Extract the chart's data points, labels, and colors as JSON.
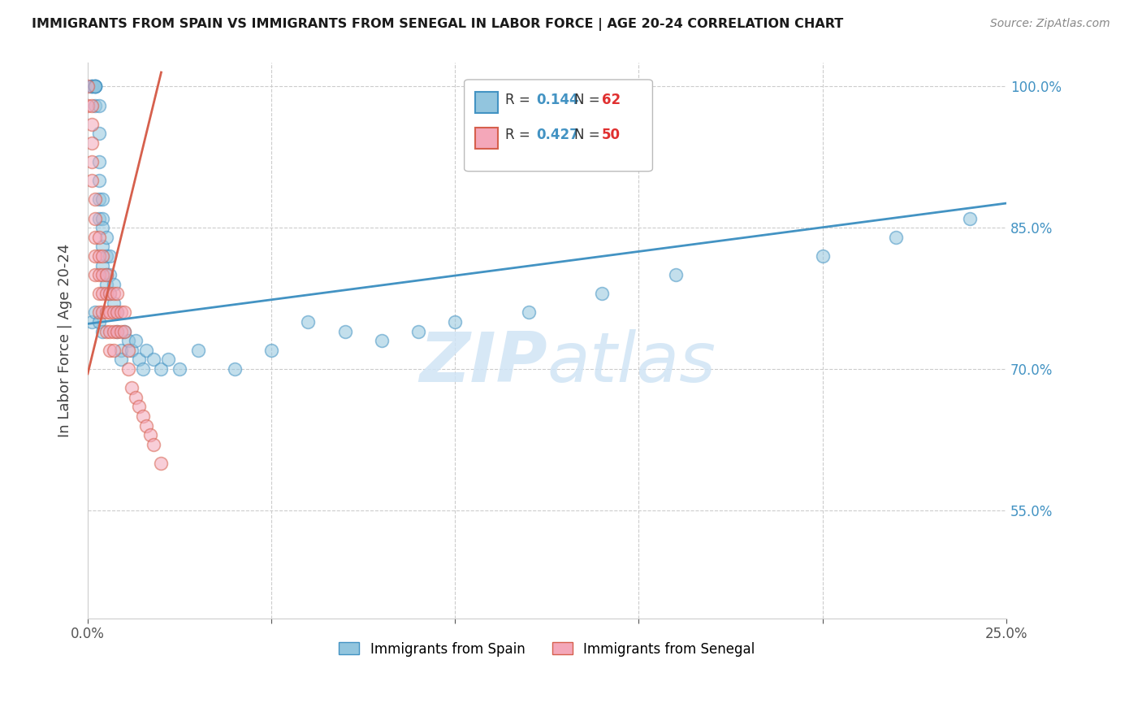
{
  "title": "IMMIGRANTS FROM SPAIN VS IMMIGRANTS FROM SENEGAL IN LABOR FORCE | AGE 20-24 CORRELATION CHART",
  "source": "Source: ZipAtlas.com",
  "ylabel": "In Labor Force | Age 20-24",
  "xlim": [
    0.0,
    0.25
  ],
  "ylim": [
    0.435,
    1.025
  ],
  "xticks": [
    0.0,
    0.05,
    0.1,
    0.15,
    0.2,
    0.25
  ],
  "xticklabels": [
    "0.0%",
    "",
    "",
    "",
    "",
    "25.0%"
  ],
  "yticks": [
    0.55,
    0.7,
    0.85,
    1.0
  ],
  "yticklabels": [
    "55.0%",
    "70.0%",
    "85.0%",
    "100.0%"
  ],
  "legend_r_spain": "0.144",
  "legend_n_spain": "62",
  "legend_r_senegal": "0.427",
  "legend_n_senegal": "50",
  "color_spain": "#92c5de",
  "color_senegal": "#f4a7b9",
  "trendline_spain_color": "#4393c3",
  "trendline_senegal_color": "#d6604d",
  "watermark_color": "#d0e4f5",
  "background_color": "#ffffff",
  "grid_color": "#cccccc",
  "spain_x": [
    0.001,
    0.001,
    0.001,
    0.002,
    0.002,
    0.002,
    0.002,
    0.002,
    0.002,
    0.003,
    0.003,
    0.003,
    0.003,
    0.003,
    0.003,
    0.004,
    0.004,
    0.004,
    0.004,
    0.004,
    0.005,
    0.005,
    0.005,
    0.005,
    0.006,
    0.006,
    0.006,
    0.007,
    0.007,
    0.008,
    0.008,
    0.009,
    0.009,
    0.01,
    0.011,
    0.012,
    0.013,
    0.014,
    0.015,
    0.016,
    0.018,
    0.02,
    0.022,
    0.025,
    0.03,
    0.04,
    0.05,
    0.06,
    0.07,
    0.08,
    0.09,
    0.1,
    0.12,
    0.14,
    0.16,
    0.2,
    0.22,
    0.24,
    0.001,
    0.002,
    0.003,
    0.004
  ],
  "spain_y": [
    1.0,
    1.0,
    1.0,
    1.0,
    1.0,
    1.0,
    1.0,
    1.0,
    0.98,
    0.98,
    0.95,
    0.92,
    0.9,
    0.88,
    0.86,
    0.88,
    0.86,
    0.85,
    0.83,
    0.81,
    0.84,
    0.82,
    0.8,
    0.79,
    0.82,
    0.8,
    0.78,
    0.79,
    0.77,
    0.76,
    0.74,
    0.72,
    0.71,
    0.74,
    0.73,
    0.72,
    0.73,
    0.71,
    0.7,
    0.72,
    0.71,
    0.7,
    0.71,
    0.7,
    0.72,
    0.7,
    0.72,
    0.75,
    0.74,
    0.73,
    0.74,
    0.75,
    0.76,
    0.78,
    0.8,
    0.82,
    0.84,
    0.86,
    0.75,
    0.76,
    0.75,
    0.74
  ],
  "senegal_x": [
    0.0,
    0.0,
    0.001,
    0.001,
    0.001,
    0.001,
    0.001,
    0.002,
    0.002,
    0.002,
    0.002,
    0.002,
    0.003,
    0.003,
    0.003,
    0.003,
    0.003,
    0.004,
    0.004,
    0.004,
    0.004,
    0.005,
    0.005,
    0.005,
    0.005,
    0.006,
    0.006,
    0.006,
    0.006,
    0.007,
    0.007,
    0.007,
    0.007,
    0.008,
    0.008,
    0.008,
    0.009,
    0.009,
    0.01,
    0.01,
    0.011,
    0.011,
    0.012,
    0.013,
    0.014,
    0.015,
    0.016,
    0.017,
    0.018,
    0.02
  ],
  "senegal_y": [
    1.0,
    0.98,
    0.98,
    0.96,
    0.94,
    0.92,
    0.9,
    0.88,
    0.86,
    0.84,
    0.82,
    0.8,
    0.84,
    0.82,
    0.8,
    0.78,
    0.76,
    0.82,
    0.8,
    0.78,
    0.76,
    0.8,
    0.78,
    0.76,
    0.74,
    0.78,
    0.76,
    0.74,
    0.72,
    0.78,
    0.76,
    0.74,
    0.72,
    0.78,
    0.76,
    0.74,
    0.76,
    0.74,
    0.76,
    0.74,
    0.72,
    0.7,
    0.68,
    0.67,
    0.66,
    0.65,
    0.64,
    0.63,
    0.62,
    0.6
  ],
  "spain_trendline_x": [
    0.0,
    0.25
  ],
  "spain_trendline_y": [
    0.748,
    0.876
  ],
  "senegal_trendline_x": [
    0.0,
    0.02
  ],
  "senegal_trendline_y": [
    0.695,
    1.015
  ]
}
